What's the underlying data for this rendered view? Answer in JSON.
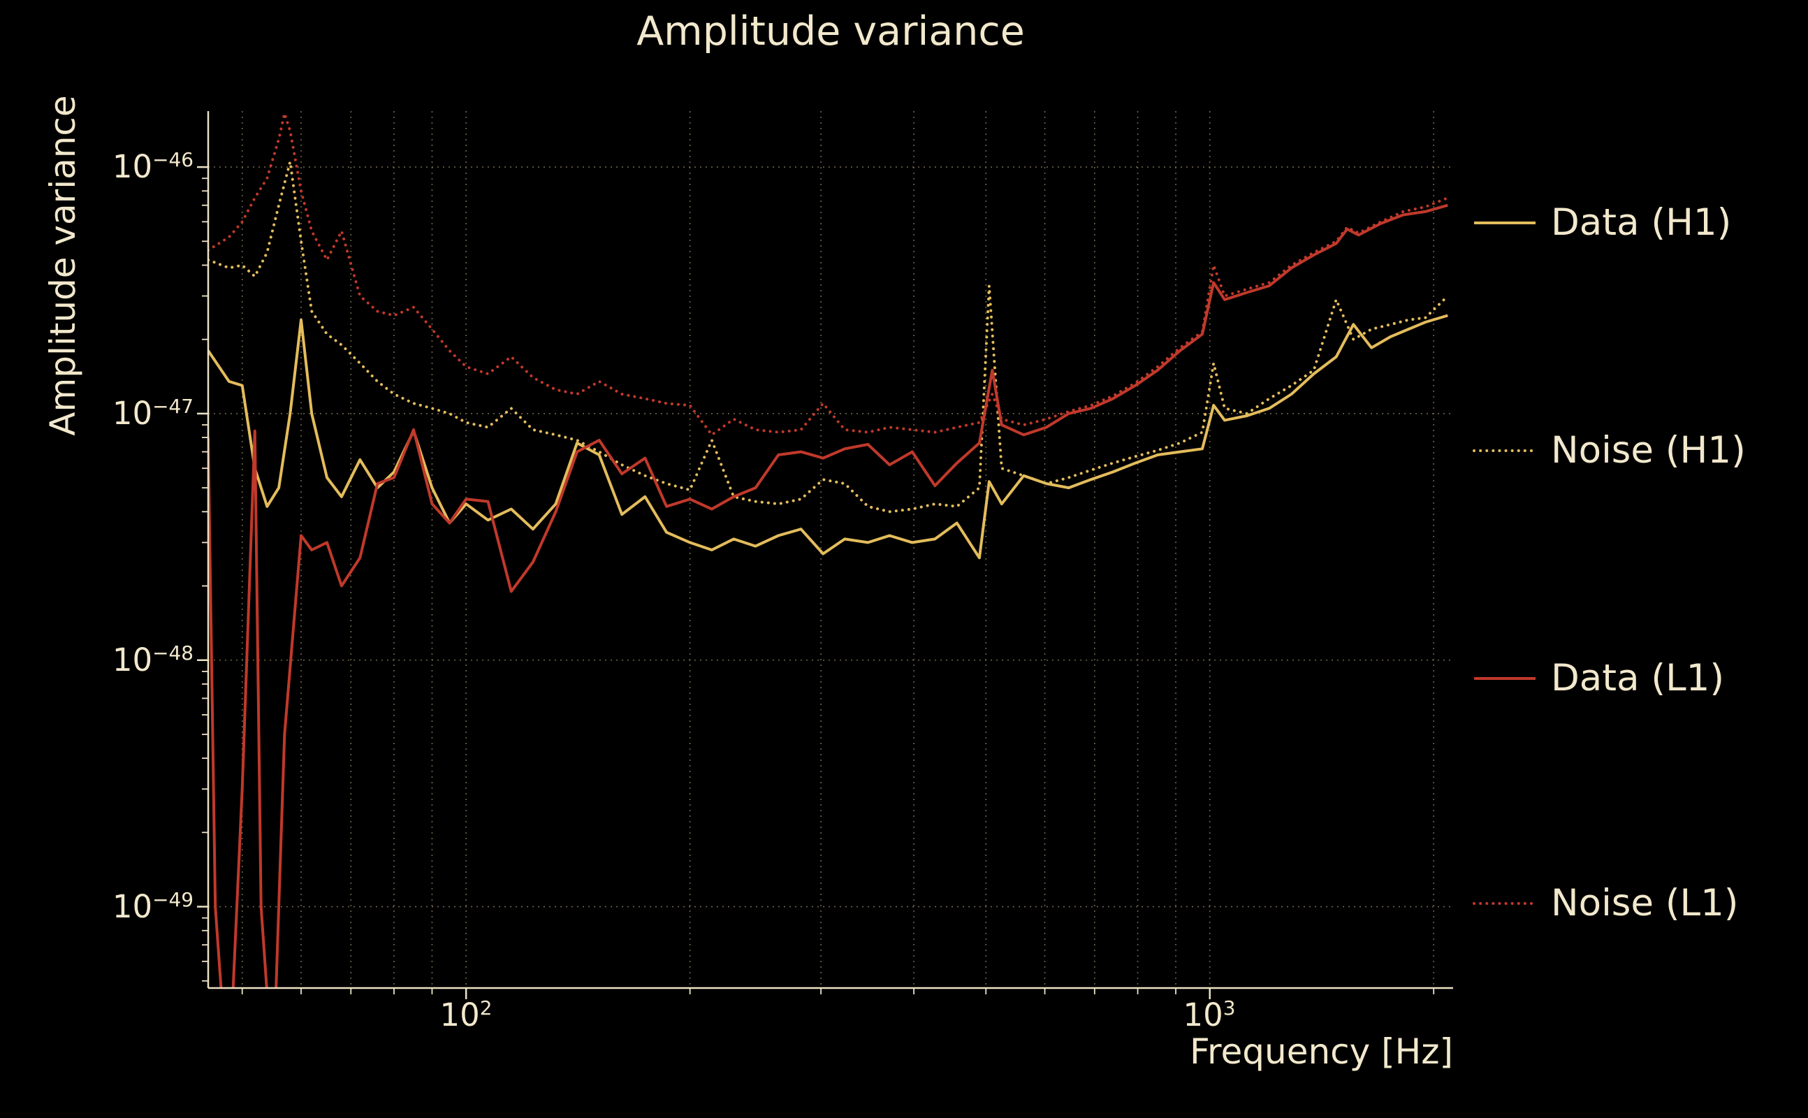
{
  "chart_data": {
    "type": "line",
    "title": "Amplitude variance",
    "xlabel": "Frequency [Hz]",
    "ylabel": "Amplitude variance",
    "xscale": "log",
    "yscale": "log",
    "xlim": [
      45,
      2124
    ],
    "ylim_log10": [
      -49.33,
      -45.773
    ],
    "grid": {
      "x": [
        50,
        60,
        70,
        80,
        90,
        100,
        200,
        300,
        400,
        500,
        600,
        700,
        800,
        900,
        1000,
        2000
      ],
      "y": [
        1e-46,
        1e-47,
        1e-48,
        1e-49
      ]
    },
    "x_ticks": [
      {
        "value": 100,
        "base": "10",
        "exp": "2"
      },
      {
        "value": 1000,
        "base": "10",
        "exp": "3"
      }
    ],
    "y_ticks": [
      {
        "value": 1e-46,
        "base": "10",
        "exp": "−46"
      },
      {
        "value": 1e-47,
        "base": "10",
        "exp": "−47"
      },
      {
        "value": 1e-48,
        "base": "10",
        "exp": "−48"
      },
      {
        "value": 1e-49,
        "base": "10",
        "exp": "−49"
      }
    ],
    "legend_position": "right",
    "colors": {
      "background": "#000000",
      "text": "#f2e8cc",
      "axis": "#ece2c4",
      "grid": "#6f654a"
    },
    "series": [
      {
        "name": "Data (H1)",
        "color": "#e3bc5c",
        "style": "solid",
        "x": [
          45,
          48,
          50,
          52,
          54,
          56,
          58,
          60,
          62,
          65,
          68,
          72,
          76,
          80,
          85,
          90,
          95,
          100,
          107,
          115,
          123,
          132,
          141,
          151,
          162,
          174,
          186,
          200,
          214,
          229,
          245,
          263,
          282,
          302,
          323,
          347,
          371,
          398,
          427,
          457,
          490,
          505,
          525,
          562,
          603,
          646,
          692,
          741,
          794,
          851,
          912,
          977,
          1012,
          1047,
          1122,
          1202,
          1288,
          1380,
          1479,
          1560,
          1650,
          1750,
          1850,
          1950,
          2089
        ],
        "y": [
          1.8e-47,
          1.35e-47,
          1.3e-47,
          6e-48,
          4.2e-48,
          5e-48,
          1e-47,
          2.4e-47,
          1e-47,
          5.5e-48,
          4.6e-48,
          6.5e-48,
          5e-48,
          5.8e-48,
          8.5e-48,
          5e-48,
          3.6e-48,
          4.3e-48,
          3.7e-48,
          4.1e-48,
          3.4e-48,
          4.3e-48,
          7.6e-48,
          6.8e-48,
          3.9e-48,
          4.6e-48,
          3.3e-48,
          3e-48,
          2.8e-48,
          3.1e-48,
          2.9e-48,
          3.2e-48,
          3.4e-48,
          2.7e-48,
          3.1e-48,
          3e-48,
          3.2e-48,
          3e-48,
          3.1e-48,
          3.6e-48,
          2.6e-48,
          5.3e-48,
          4.3e-48,
          5.6e-48,
          5.2e-48,
          5e-48,
          5.4e-48,
          5.8e-48,
          6.3e-48,
          6.8e-48,
          7e-48,
          7.2e-48,
          1.08e-47,
          9.4e-48,
          9.8e-48,
          1.05e-47,
          1.2e-47,
          1.45e-47,
          1.7e-47,
          2.3e-47,
          1.85e-47,
          2.05e-47,
          2.2e-47,
          2.35e-47,
          2.5e-47
        ]
      },
      {
        "name": "Noise (H1)",
        "color": "#e3bc5c",
        "style": "dotted",
        "x": [
          45,
          48,
          50,
          52,
          54,
          56,
          58,
          60,
          62,
          65,
          68,
          72,
          76,
          80,
          85,
          90,
          95,
          100,
          107,
          115,
          123,
          132,
          141,
          151,
          162,
          174,
          186,
          200,
          214,
          229,
          245,
          263,
          282,
          302,
          323,
          347,
          371,
          398,
          427,
          457,
          490,
          505,
          525,
          562,
          603,
          646,
          692,
          741,
          794,
          851,
          912,
          977,
          1012,
          1047,
          1122,
          1202,
          1288,
          1380,
          1479,
          1560,
          1650,
          1750,
          1850,
          1950,
          2089
        ],
        "y": [
          4.2e-47,
          3.9e-47,
          4e-47,
          3.6e-47,
          4.5e-47,
          7e-47,
          1.05e-46,
          5e-47,
          2.6e-47,
          2.1e-47,
          1.9e-47,
          1.6e-47,
          1.35e-47,
          1.2e-47,
          1.1e-47,
          1.05e-47,
          1e-47,
          9.2e-48,
          8.8e-48,
          1.05e-47,
          8.6e-48,
          8.2e-48,
          7.8e-48,
          7e-48,
          6.2e-48,
          5.6e-48,
          5.2e-48,
          4.9e-48,
          7.8e-48,
          4.6e-48,
          4.4e-48,
          4.3e-48,
          4.5e-48,
          5.4e-48,
          5.2e-48,
          4.2e-48,
          4e-48,
          4.1e-48,
          4.3e-48,
          4.2e-48,
          5e-48,
          3.3e-47,
          6e-48,
          5.6e-48,
          5.2e-48,
          5.5e-48,
          5.9e-48,
          6.3e-48,
          6.7e-48,
          7.1e-48,
          7.6e-48,
          8.4e-48,
          1.6e-47,
          1.05e-47,
          1e-47,
          1.15e-47,
          1.3e-47,
          1.5e-47,
          2.9e-47,
          2e-47,
          2.2e-47,
          2.3e-47,
          2.4e-47,
          2.45e-47,
          3e-47
        ]
      },
      {
        "name": "Data (L1)",
        "color": "#c0392b",
        "style": "solid",
        "x": [
          45,
          46,
          47,
          48,
          50,
          52,
          53,
          55,
          57,
          60,
          62,
          65,
          68,
          72,
          76,
          80,
          85,
          90,
          95,
          100,
          107,
          115,
          123,
          132,
          141,
          151,
          162,
          174,
          186,
          200,
          214,
          229,
          245,
          263,
          282,
          302,
          323,
          347,
          371,
          398,
          427,
          457,
          490,
          510,
          525,
          562,
          603,
          646,
          692,
          741,
          794,
          851,
          912,
          977,
          1012,
          1047,
          1122,
          1202,
          1288,
          1380,
          1479,
          1530,
          1585,
          1698,
          1820,
          1950,
          2089
        ],
        "y": [
          8e-48,
          1e-49,
          4e-50,
          2e-50,
          3e-49,
          8.5e-48,
          1e-49,
          2e-50,
          5e-49,
          3.2e-48,
          2.8e-48,
          3e-48,
          2e-48,
          2.6e-48,
          5.2e-48,
          5.5e-48,
          8.6e-48,
          4.3e-48,
          3.6e-48,
          4.5e-48,
          4.4e-48,
          1.9e-48,
          2.5e-48,
          4e-48,
          7e-48,
          7.8e-48,
          5.7e-48,
          6.6e-48,
          4.2e-48,
          4.5e-48,
          4.1e-48,
          4.6e-48,
          5e-48,
          6.8e-48,
          7e-48,
          6.6e-48,
          7.2e-48,
          7.5e-48,
          6.2e-48,
          7e-48,
          5.1e-48,
          6.3e-48,
          7.6e-48,
          1.5e-47,
          9e-48,
          8.2e-48,
          8.8e-48,
          1e-47,
          1.05e-47,
          1.15e-47,
          1.3e-47,
          1.5e-47,
          1.8e-47,
          2.1e-47,
          3.4e-47,
          2.9e-47,
          3.1e-47,
          3.3e-47,
          3.9e-47,
          4.4e-47,
          4.9e-47,
          5.6e-47,
          5.3e-47,
          5.9e-47,
          6.4e-47,
          6.6e-47,
          7e-47
        ]
      },
      {
        "name": "Noise (L1)",
        "color": "#c0392b",
        "style": "dotted",
        "x": [
          45,
          48,
          50,
          52,
          54,
          56,
          57,
          58,
          60,
          62,
          65,
          68,
          72,
          76,
          80,
          85,
          90,
          95,
          100,
          107,
          115,
          123,
          132,
          141,
          151,
          162,
          174,
          186,
          200,
          214,
          229,
          245,
          263,
          282,
          302,
          323,
          347,
          371,
          398,
          427,
          457,
          490,
          510,
          525,
          562,
          603,
          646,
          692,
          741,
          794,
          851,
          912,
          977,
          1012,
          1047,
          1122,
          1202,
          1288,
          1380,
          1479,
          1530,
          1585,
          1698,
          1820,
          1950,
          2089
        ],
        "y": [
          4.6e-47,
          5.2e-47,
          6e-47,
          7.5e-47,
          9e-47,
          1.3e-46,
          1.65e-46,
          1.4e-46,
          8e-47,
          5.5e-47,
          4.2e-47,
          5.5e-47,
          3e-47,
          2.6e-47,
          2.5e-47,
          2.7e-47,
          2.2e-47,
          1.8e-47,
          1.55e-47,
          1.45e-47,
          1.7e-47,
          1.4e-47,
          1.25e-47,
          1.2e-47,
          1.35e-47,
          1.2e-47,
          1.15e-47,
          1.1e-47,
          1.08e-47,
          8.2e-48,
          9.5e-48,
          8.6e-48,
          8.4e-48,
          8.6e-48,
          1.1e-47,
          8.6e-48,
          8.4e-48,
          8.8e-48,
          8.6e-48,
          8.4e-48,
          8.8e-48,
          9.2e-48,
          1.2e-47,
          9.5e-48,
          9e-48,
          9.5e-48,
          1.02e-47,
          1.08e-47,
          1.18e-47,
          1.33e-47,
          1.55e-47,
          1.85e-47,
          2.15e-47,
          4e-47,
          3e-47,
          3.2e-47,
          3.4e-47,
          4e-47,
          4.5e-47,
          5e-47,
          5.7e-47,
          5.4e-47,
          6e-47,
          6.6e-47,
          6.9e-47,
          7.5e-47
        ]
      }
    ]
  }
}
